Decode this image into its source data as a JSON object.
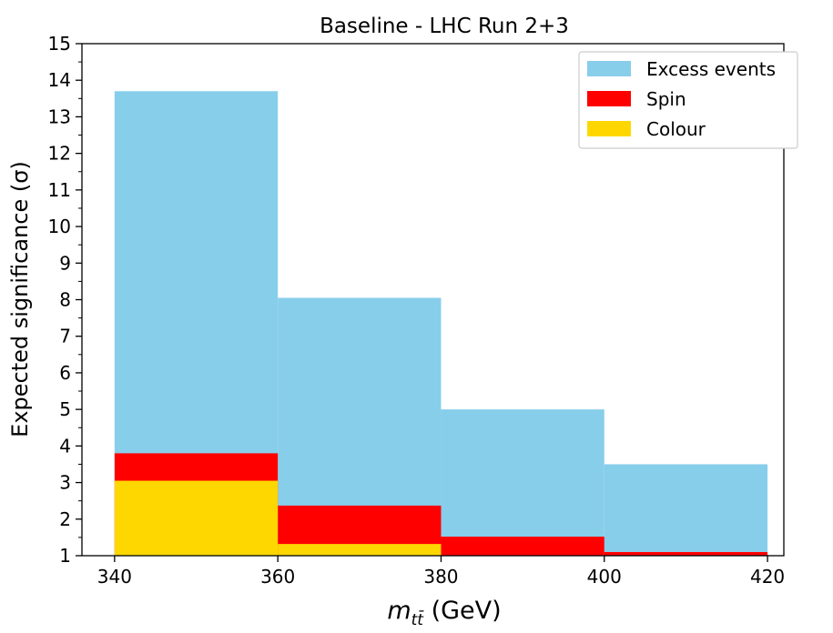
{
  "chart_data": {
    "type": "bar",
    "title": "Baseline - LHC Run 2+3",
    "xlabel_var": "m",
    "xlabel_sub": "tt̄",
    "xlabel_unit": "(GeV)",
    "ylabel": "Expected significance (σ)",
    "bin_edges": [
      340,
      360,
      380,
      400,
      420
    ],
    "xlim": [
      336,
      422
    ],
    "ylim": [
      1,
      15
    ],
    "xticks": [
      340,
      360,
      380,
      400,
      420
    ],
    "yticks": [
      1,
      2,
      3,
      4,
      5,
      6,
      7,
      8,
      9,
      10,
      11,
      12,
      13,
      14,
      15
    ],
    "y_minor_step": 0.5,
    "series": [
      {
        "name": "Excess events",
        "color": "#87CEEB",
        "values": [
          13.7,
          8.05,
          5.0,
          3.5
        ]
      },
      {
        "name": "Spin",
        "color": "#FF0000",
        "values": [
          3.8,
          2.37,
          1.52,
          1.1
        ]
      },
      {
        "name": "Colour",
        "color": "#FFD700",
        "values": [
          3.05,
          1.32,
          1.0,
          1.0
        ]
      }
    ],
    "legend_position": "top-right",
    "grid": false
  }
}
